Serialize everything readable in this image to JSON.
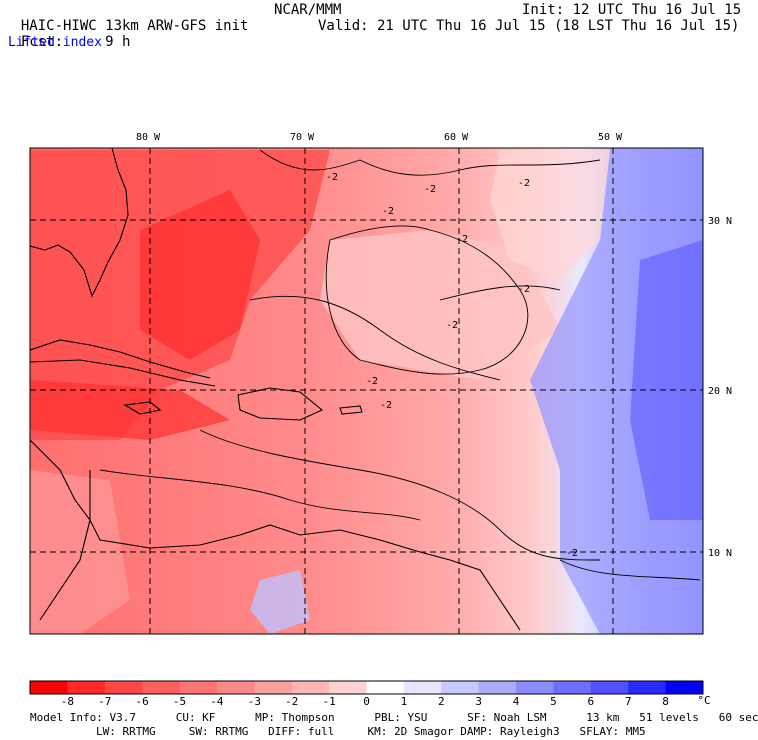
{
  "header": {
    "model": "HAIC-HIWC 13km ARW-GFS init",
    "org": "NCAR/MMM",
    "init": "Init: 12 UTC Thu 16 Jul 15",
    "fcst_label": "Fcst:",
    "fcst_value": "9 h",
    "valid": "Valid: 21 UTC Thu 16 Jul 15 (18 LST Thu 16 Jul 15)",
    "field": "Lifted index"
  },
  "map": {
    "lon_labels": [
      "80 W",
      "70 W",
      "60 W",
      "50 W"
    ],
    "lat_labels": [
      "30 N",
      "20 N",
      "10 N"
    ],
    "contour_label": "-2"
  },
  "colorbar": {
    "ticks": [
      "-8",
      "-7",
      "-6",
      "-5",
      "-4",
      "-3",
      "-2",
      "-1",
      "0",
      "1",
      "2",
      "3",
      "4",
      "5",
      "6",
      "7",
      "8"
    ],
    "unit": "°C",
    "colors": [
      "#ff0000",
      "#ff2a2a",
      "#ff4747",
      "#ff5f5f",
      "#ff7474",
      "#ff8888",
      "#ff9e9e",
      "#ffb6b6",
      "#ffd2d2",
      "#ffffff",
      "#e6e6ff",
      "#c8c8ff",
      "#aaaaff",
      "#8c8cff",
      "#6e6eff",
      "#5050ff",
      "#2a2aff",
      "#0000ff"
    ]
  },
  "footer": {
    "line1": "Model Info: V3.7      CU: KF      MP: Thompson      PBL: YSU      SF: Noah LSM      13 km   51 levels   60 sec",
    "line2": "LW: RRTMG     SW: RRTMG   DIFF: full     KM: 2D Smagor DAMP: Rayleigh3   SFLAY: MM5"
  }
}
